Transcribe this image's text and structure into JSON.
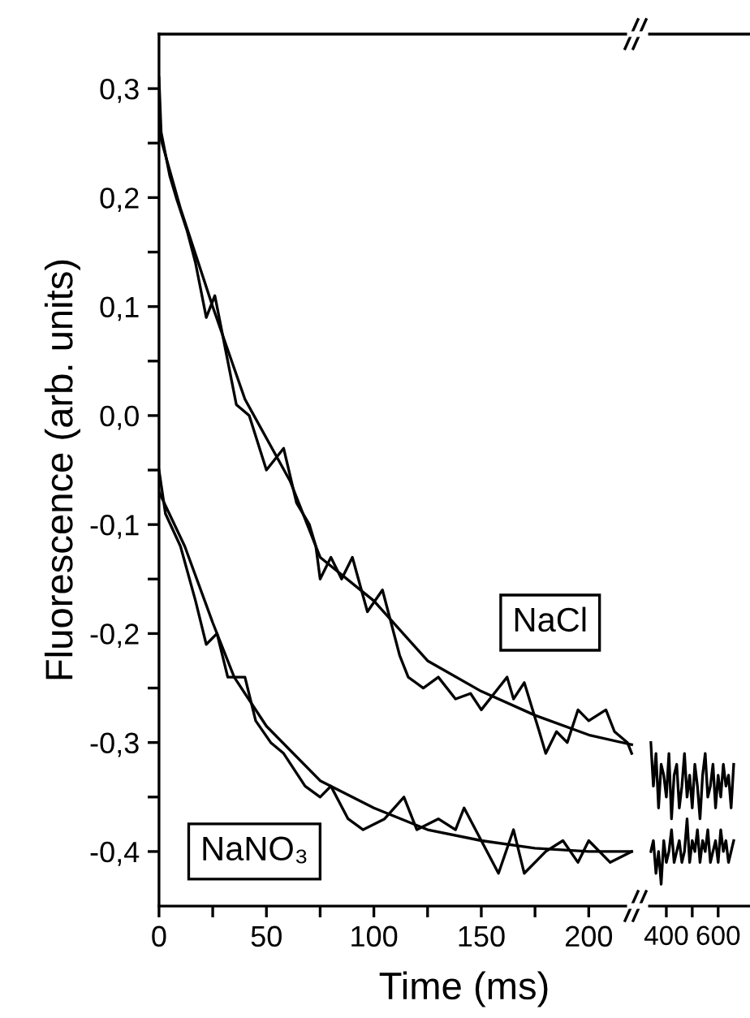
{
  "chart_data": [
    {
      "type": "line",
      "xlabel": "Time (ms)",
      "ylabel": "Fluorescence (arb. units)",
      "xlim": [
        0,
        222
      ],
      "ylim": [
        -0.45,
        0.35
      ],
      "xticks": [
        0,
        {
          "value": 25,
          "label": null
        },
        50,
        {
          "value": 75,
          "label": null
        },
        100,
        {
          "value": 125,
          "label": null
        },
        150,
        {
          "value": 175,
          "label": null
        },
        200
      ],
      "yticks": [
        {
          "value": -0.4,
          "label": "-0,4"
        },
        {
          "value": -0.35,
          "label": null
        },
        {
          "value": -0.3,
          "label": "-0,3"
        },
        {
          "value": -0.25,
          "label": null
        },
        {
          "value": -0.2,
          "label": "-0,2"
        },
        {
          "value": -0.15,
          "label": null
        },
        {
          "value": -0.1,
          "label": "-0,1"
        },
        {
          "value": -0.05,
          "label": null
        },
        {
          "value": 0.0,
          "label": "0,0"
        },
        {
          "value": 0.05,
          "label": null
        },
        {
          "value": 0.1,
          "label": "0,1"
        },
        {
          "value": 0.15,
          "label": null
        },
        {
          "value": 0.2,
          "label": "0,2"
        },
        {
          "value": 0.25,
          "label": null
        },
        {
          "value": 0.3,
          "label": "0,3"
        }
      ],
      "annotations": [
        "NaCl",
        "NaNO₃"
      ],
      "series": [
        {
          "color": "#000000",
          "x": [
            0,
            1,
            5,
            8,
            13,
            17,
            22,
            26,
            31,
            36,
            42,
            50,
            58,
            64,
            70,
            73,
            75,
            80,
            85,
            90,
            97,
            104,
            112,
            116,
            123,
            130,
            138,
            145,
            150,
            158,
            162,
            165,
            170,
            177,
            180,
            185,
            190,
            195,
            200,
            208,
            212,
            218,
            220
          ],
          "values": [
            0.31,
            0.26,
            0.22,
            0.2,
            0.17,
            0.14,
            0.09,
            0.11,
            0.06,
            0.01,
            0.0,
            -0.05,
            -0.03,
            -0.08,
            -0.1,
            -0.12,
            -0.15,
            -0.13,
            -0.15,
            -0.13,
            -0.18,
            -0.16,
            -0.22,
            -0.24,
            -0.25,
            -0.24,
            -0.26,
            -0.255,
            -0.27,
            -0.25,
            -0.24,
            -0.26,
            -0.245,
            -0.29,
            -0.31,
            -0.29,
            -0.3,
            -0.27,
            -0.28,
            -0.27,
            -0.29,
            -0.3,
            -0.31
          ]
        },
        {
          "color": "#000000",
          "x": [
            0,
            10,
            25,
            40,
            61,
            75,
            100,
            125,
            150,
            175,
            200,
            220
          ],
          "values": [
            0.26,
            0.19,
            0.1,
            0.015,
            -0.06,
            -0.13,
            -0.17,
            -0.225,
            -0.253,
            -0.275,
            -0.293,
            -0.302
          ]
        },
        {
          "color": "#000000",
          "x": [
            0,
            3,
            10,
            17,
            22,
            27,
            32,
            40,
            45,
            52,
            58,
            68,
            75,
            80,
            88,
            95,
            105,
            114,
            120,
            130,
            138,
            142,
            150,
            158,
            165,
            170,
            180,
            188,
            195,
            200,
            210,
            220
          ],
          "values": [
            -0.05,
            -0.09,
            -0.12,
            -0.17,
            -0.21,
            -0.2,
            -0.24,
            -0.24,
            -0.28,
            -0.3,
            -0.31,
            -0.34,
            -0.35,
            -0.34,
            -0.37,
            -0.38,
            -0.37,
            -0.35,
            -0.38,
            -0.37,
            -0.38,
            -0.36,
            -0.39,
            -0.42,
            -0.38,
            -0.42,
            -0.4,
            -0.39,
            -0.41,
            -0.39,
            -0.41,
            -0.4
          ]
        },
        {
          "color": "#000000",
          "x": [
            0,
            12,
            25,
            35,
            50,
            75,
            100,
            125,
            150,
            175,
            200,
            220
          ],
          "values": [
            -0.07,
            -0.12,
            -0.19,
            -0.24,
            -0.285,
            -0.335,
            -0.36,
            -0.38,
            -0.39,
            -0.397,
            -0.4,
            -0.4
          ]
        }
      ]
    },
    {
      "type": "line",
      "xlim": [
        335,
        720
      ],
      "ylim": [
        -0.45,
        0.35
      ],
      "tick_labels": "x",
      "xticks": [
        400,
        {
          "value": 500,
          "label": null
        },
        600
      ],
      "series": [
        {
          "color": "#000000",
          "x": [
            340,
            350,
            360,
            370,
            380,
            390,
            400,
            410,
            420,
            430,
            440,
            450,
            460,
            470,
            480,
            490,
            500,
            510,
            520,
            530,
            540,
            550,
            560,
            570,
            580,
            590,
            600,
            610,
            620,
            630,
            640,
            650,
            660
          ],
          "values": [
            -0.3,
            -0.34,
            -0.31,
            -0.36,
            -0.32,
            -0.33,
            -0.35,
            -0.31,
            -0.37,
            -0.33,
            -0.32,
            -0.36,
            -0.34,
            -0.31,
            -0.35,
            -0.33,
            -0.36,
            -0.32,
            -0.34,
            -0.37,
            -0.33,
            -0.31,
            -0.35,
            -0.34,
            -0.32,
            -0.36,
            -0.33,
            -0.35,
            -0.32,
            -0.34,
            -0.33,
            -0.36,
            -0.32
          ]
        },
        {
          "color": "#000000",
          "x": [
            340,
            350,
            360,
            370,
            380,
            390,
            400,
            410,
            420,
            430,
            440,
            450,
            460,
            470,
            480,
            490,
            500,
            510,
            520,
            530,
            540,
            550,
            560,
            570,
            580,
            590,
            600,
            610,
            620,
            630,
            640,
            650,
            660
          ],
          "values": [
            -0.4,
            -0.39,
            -0.42,
            -0.4,
            -0.43,
            -0.39,
            -0.41,
            -0.4,
            -0.38,
            -0.41,
            -0.4,
            -0.39,
            -0.41,
            -0.4,
            -0.37,
            -0.41,
            -0.39,
            -0.4,
            -0.38,
            -0.41,
            -0.39,
            -0.4,
            -0.38,
            -0.41,
            -0.4,
            -0.39,
            -0.41,
            -0.38,
            -0.4,
            -0.39,
            -0.41,
            -0.4,
            -0.39
          ]
        }
      ]
    }
  ]
}
